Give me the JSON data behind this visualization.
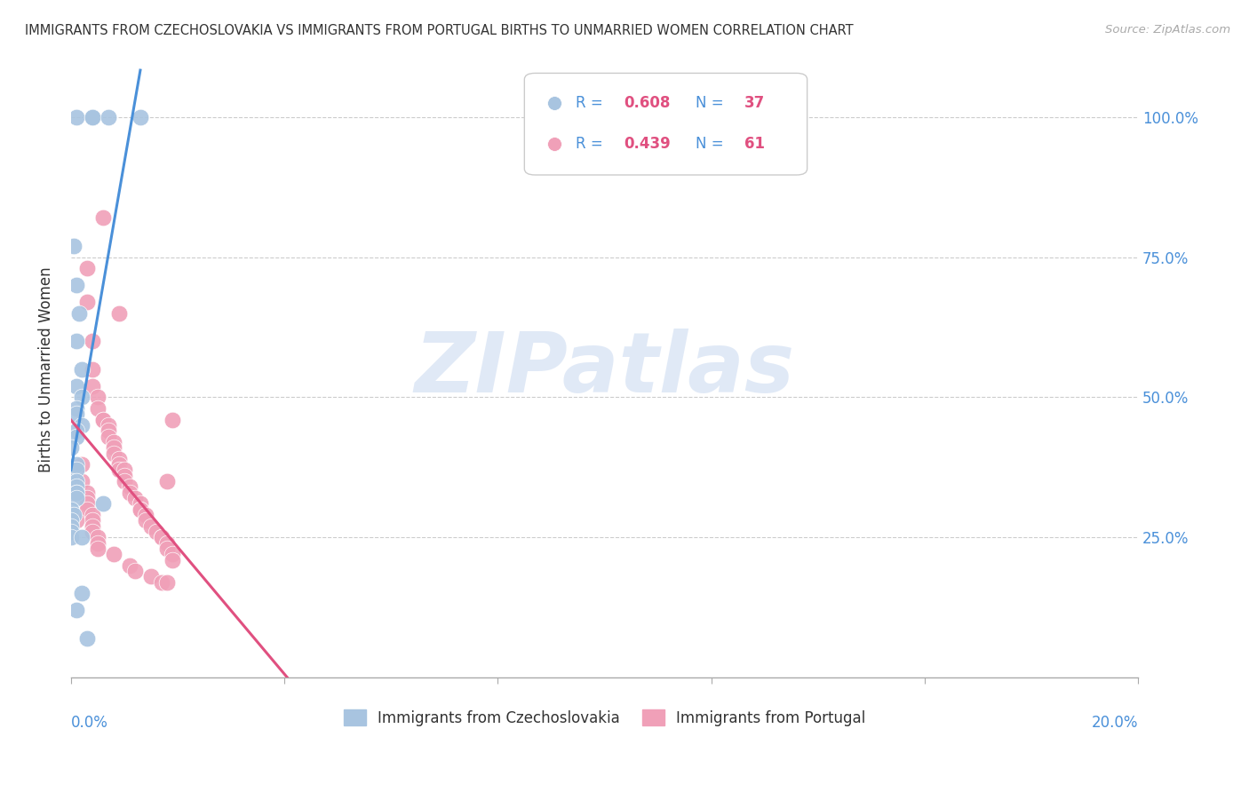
{
  "title": "IMMIGRANTS FROM CZECHOSLOVAKIA VS IMMIGRANTS FROM PORTUGAL BIRTHS TO UNMARRIED WOMEN CORRELATION CHART",
  "source": "Source: ZipAtlas.com",
  "ylabel": "Births to Unmarried Women",
  "legend_labels": [
    "Immigrants from Czechoslovakia",
    "Immigrants from Portugal"
  ],
  "R_blue": 0.608,
  "N_blue": 37,
  "R_pink": 0.439,
  "N_pink": 61,
  "color_blue": "#a8c4e0",
  "color_pink": "#f0a0b8",
  "line_color_blue": "#4a90d9",
  "line_color_pink": "#e05080",
  "watermark_color": "#c8d8f0",
  "blue_x": [
    0.001,
    0.004,
    0.004,
    0.007,
    0.013,
    0.0005,
    0.001,
    0.0015,
    0.001,
    0.002,
    0.001,
    0.002,
    0.001,
    0.001,
    0.002,
    0.001,
    0.001,
    0.0,
    0.001,
    0.001,
    0.0,
    0.001,
    0.001,
    0.001,
    0.001,
    0.001,
    0.006,
    0.0,
    0.0005,
    0.0,
    0.0,
    0.0,
    0.0,
    0.002,
    0.002,
    0.001,
    0.003
  ],
  "blue_y": [
    1.0,
    1.0,
    1.0,
    1.0,
    1.0,
    0.77,
    0.7,
    0.65,
    0.6,
    0.55,
    0.52,
    0.5,
    0.48,
    0.47,
    0.45,
    0.44,
    0.43,
    0.41,
    0.38,
    0.37,
    0.35,
    0.35,
    0.34,
    0.33,
    0.33,
    0.32,
    0.31,
    0.3,
    0.29,
    0.28,
    0.27,
    0.26,
    0.25,
    0.25,
    0.15,
    0.12,
    0.07
  ],
  "pink_x": [
    0.003,
    0.003,
    0.004,
    0.004,
    0.004,
    0.005,
    0.005,
    0.006,
    0.006,
    0.007,
    0.007,
    0.007,
    0.008,
    0.008,
    0.008,
    0.009,
    0.009,
    0.009,
    0.01,
    0.01,
    0.01,
    0.011,
    0.011,
    0.012,
    0.013,
    0.013,
    0.013,
    0.014,
    0.014,
    0.015,
    0.016,
    0.017,
    0.017,
    0.018,
    0.018,
    0.019,
    0.019,
    0.002,
    0.003,
    0.003,
    0.003,
    0.003,
    0.004,
    0.004,
    0.004,
    0.004,
    0.005,
    0.005,
    0.005,
    0.008,
    0.011,
    0.012,
    0.015,
    0.017,
    0.018,
    0.018,
    0.019,
    0.002,
    0.001,
    0.006,
    0.009
  ],
  "pink_y": [
    0.73,
    0.67,
    0.6,
    0.55,
    0.52,
    0.5,
    0.48,
    0.46,
    0.46,
    0.45,
    0.44,
    0.43,
    0.42,
    0.41,
    0.4,
    0.39,
    0.38,
    0.37,
    0.37,
    0.36,
    0.35,
    0.34,
    0.33,
    0.32,
    0.31,
    0.3,
    0.3,
    0.29,
    0.28,
    0.27,
    0.26,
    0.25,
    0.25,
    0.24,
    0.23,
    0.22,
    0.21,
    0.35,
    0.33,
    0.32,
    0.31,
    0.3,
    0.29,
    0.28,
    0.27,
    0.26,
    0.25,
    0.24,
    0.23,
    0.22,
    0.2,
    0.19,
    0.18,
    0.17,
    0.35,
    0.17,
    0.46,
    0.38,
    0.28,
    0.82,
    0.65
  ],
  "xlim": [
    0.0,
    0.2
  ],
  "ylim": [
    0.0,
    1.1
  ]
}
